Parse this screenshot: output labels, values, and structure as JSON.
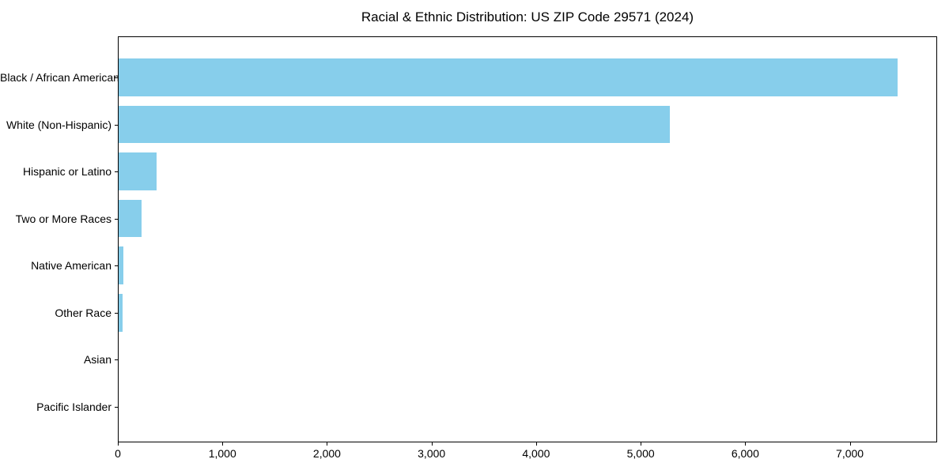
{
  "chart_data": {
    "type": "bar",
    "orientation": "horizontal",
    "title": "Racial & Ethnic Distribution: US ZIP Code 29571 (2024)",
    "categories": [
      "Black / African American",
      "White (Non-Hispanic)",
      "Hispanic or Latino",
      "Two or More Races",
      "Native American",
      "Other Race",
      "Asian",
      "Pacific Islander"
    ],
    "values": [
      7450,
      5270,
      365,
      220,
      45,
      40,
      0,
      0
    ],
    "xlabel": "",
    "ylabel": "",
    "xlim": [
      0,
      7820
    ],
    "x_ticks": [
      0,
      1000,
      2000,
      3000,
      4000,
      5000,
      6000,
      7000
    ],
    "x_tick_labels": [
      "0",
      "1,000",
      "2,000",
      "3,000",
      "4,000",
      "5,000",
      "6,000",
      "7,000"
    ],
    "bar_color": "#87CEEB",
    "axis_color": "#000000",
    "text_color": "#000000",
    "grid": false,
    "legend": null
  }
}
